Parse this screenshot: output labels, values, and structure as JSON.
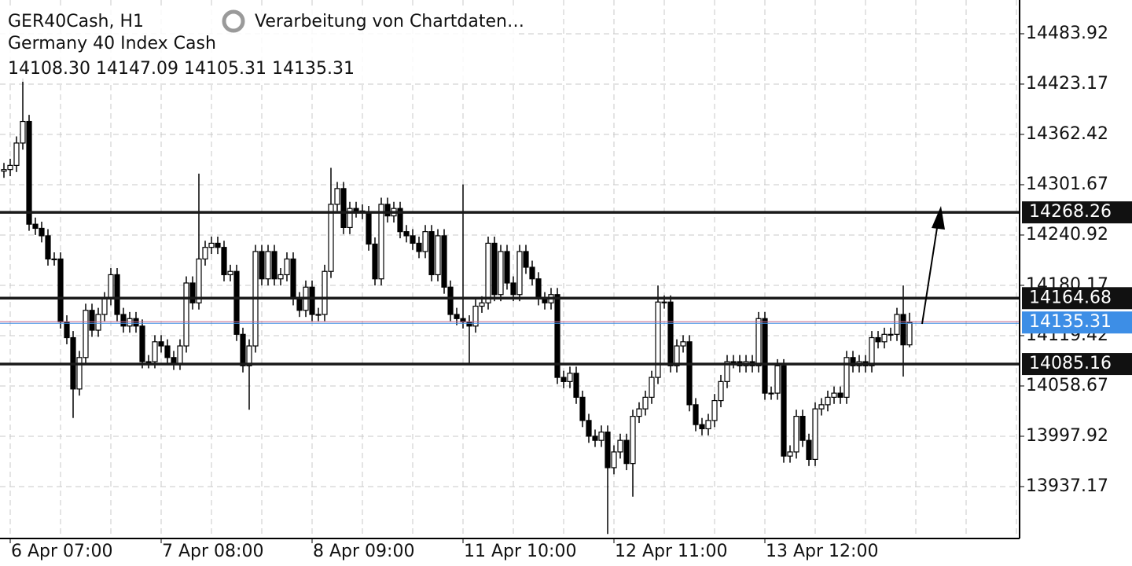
{
  "chart_data": {
    "type": "candlestick",
    "title": "GER40Cash, H1",
    "subtitle": "Germany 40 Index Cash",
    "status": "Verarbeitung von Chartdaten…",
    "categories": [
      null,
      "6 Apr 07:00",
      null,
      null,
      null,
      null,
      null,
      null,
      null,
      null,
      null,
      null,
      null,
      null,
      null,
      null,
      null,
      null,
      null,
      null,
      null,
      null,
      null,
      null,
      null,
      "7 Apr 08:00",
      null,
      null,
      null,
      null,
      null,
      null,
      null,
      null,
      null,
      null,
      null,
      null,
      null,
      null,
      null,
      null,
      null,
      null,
      null,
      null,
      null,
      null,
      null,
      "8 Apr 09:00",
      null,
      null,
      null,
      null,
      null,
      null,
      null,
      null,
      null,
      null,
      null,
      null,
      null,
      null,
      null,
      null,
      null,
      null,
      null,
      null,
      null,
      null,
      null,
      "11 Apr 10:00",
      null,
      null,
      null,
      null,
      null,
      null,
      null,
      null,
      null,
      null,
      null,
      null,
      null,
      null,
      null,
      null,
      null,
      null,
      null,
      null,
      null,
      null,
      null,
      "12 Apr 11:00",
      null,
      null,
      null,
      null,
      null,
      null,
      null,
      null,
      null,
      null,
      null,
      null,
      null,
      null,
      null,
      null,
      null,
      null,
      null,
      null,
      null,
      null,
      null,
      "13 Apr 12:00",
      null,
      null,
      null,
      null,
      null,
      null,
      null,
      null,
      null,
      null,
      null,
      null,
      null,
      null,
      null,
      null,
      null,
      null,
      null,
      null,
      null,
      null,
      null
    ],
    "open": [
      14318,
      14320,
      14325,
      14352,
      14378,
      14254,
      14249,
      14240,
      14212,
      14212,
      14136,
      14117,
      14055,
      14093,
      14150,
      14126,
      14145,
      14164,
      14193,
      14145,
      14131,
      14140,
      14131,
      14088,
      14088,
      14112,
      14107,
      14093,
      14086,
      14107,
      14183,
      14159,
      14212,
      14226,
      14231,
      14226,
      14193,
      14197,
      14121,
      14083,
      14107,
      14221,
      14188,
      14221,
      14188,
      14193,
      14212,
      14164,
      14150,
      14178,
      14145,
      14145,
      14197,
      14278,
      14297,
      14250,
      14273,
      14270,
      14268,
      14230,
      14188,
      14278,
      14264,
      14273,
      14245,
      14240,
      14231,
      14221,
      14245,
      14193,
      14240,
      14178,
      14145,
      14140,
      14136,
      14131,
      14155,
      14159,
      14231,
      14169,
      14221,
      14183,
      14169,
      14221,
      14202,
      14188,
      14164,
      14159,
      14169,
      14069,
      14064,
      14074,
      14045,
      14017,
      13998,
      13993,
      14003,
      13960,
      13979,
      13993,
      13965,
      14022,
      14031,
      14045,
      14069,
      14160,
      14160,
      14083,
      14107,
      14112,
      14036,
      14012,
      14007,
      14017,
      14041,
      14064,
      14088,
      14088,
      14083,
      14088,
      14083,
      14140,
      14050,
      14050,
      14083,
      13974,
      13979,
      14022,
      13993,
      13970,
      14031,
      14036,
      14045,
      14050,
      14045,
      14093,
      14083,
      14088,
      14083,
      14117,
      14112,
      14121,
      14121,
      14145,
      14108.3
    ],
    "high": [
      14328,
      14333,
      14360,
      14430,
      14386,
      14262,
      14257,
      14248,
      14220,
      14220,
      14144,
      14125,
      14101,
      14158,
      14158,
      14153,
      14172,
      14201,
      14201,
      14153,
      14148,
      14148,
      14139,
      14096,
      14120,
      14120,
      14115,
      14101,
      14115,
      14191,
      14191,
      14315,
      14234,
      14239,
      14239,
      14234,
      14205,
      14205,
      14129,
      14115,
      14229,
      14229,
      14229,
      14229,
      14201,
      14220,
      14220,
      14172,
      14186,
      14186,
      14153,
      14205,
      14322,
      14305,
      14305,
      14281,
      14281,
      14278,
      14276,
      14238,
      14286,
      14286,
      14281,
      14281,
      14253,
      14248,
      14239,
      14253,
      14253,
      14248,
      14248,
      14186,
      14153,
      14302,
      14144,
      14163,
      14167,
      14239,
      14239,
      14229,
      14229,
      14191,
      14229,
      14229,
      14210,
      14196,
      14172,
      14177,
      14177,
      14077,
      14082,
      14082,
      14053,
      14025,
      14006,
      14011,
      14011,
      13987,
      14001,
      14001,
      14030,
      14039,
      14053,
      14077,
      14180,
      14168,
      14168,
      14115,
      14120,
      14120,
      14044,
      14020,
      14025,
      14049,
      14072,
      14096,
      14096,
      14096,
      14096,
      14096,
      14148,
      14148,
      14058,
      14091,
      14091,
      13987,
      14030,
      14030,
      14001,
      14039,
      14044,
      14053,
      14058,
      14058,
      14101,
      14101,
      14096,
      14096,
      14125,
      14125,
      14129,
      14129,
      14153,
      14180,
      14147.09
    ],
    "low": [
      14310,
      14312,
      14317,
      14344,
      14246,
      14241,
      14232,
      14204,
      14204,
      14128,
      14109,
      14020,
      14047,
      14085,
      14118,
      14118,
      14137,
      14156,
      14137,
      14123,
      14123,
      14123,
      14080,
      14080,
      14080,
      14099,
      14085,
      14078,
      14078,
      14099,
      14151,
      14151,
      14204,
      14218,
      14218,
      14185,
      14185,
      14113,
      14075,
      14030,
      14099,
      14180,
      14180,
      14180,
      14180,
      14185,
      14156,
      14142,
      14142,
      14137,
      14137,
      14137,
      14189,
      14270,
      14242,
      14242,
      14262,
      14260,
      14222,
      14180,
      14180,
      14256,
      14256,
      14237,
      14232,
      14223,
      14213,
      14213,
      14185,
      14185,
      14170,
      14137,
      14132,
      14128,
      14085,
      14123,
      14147,
      14151,
      14161,
      14161,
      14175,
      14161,
      14161,
      14194,
      14180,
      14156,
      14151,
      14151,
      14061,
      14056,
      14056,
      14037,
      14009,
      13990,
      13985,
      13985,
      13880,
      13952,
      13971,
      13957,
      13925,
      14014,
      14023,
      14037,
      14061,
      14152,
      14075,
      14075,
      14099,
      14028,
      14004,
      13999,
      13999,
      14009,
      14033,
      14056,
      14080,
      14075,
      14075,
      14075,
      14075,
      14042,
      14042,
      14042,
      13966,
      13966,
      13971,
      13985,
      13962,
      13962,
      14023,
      14028,
      14037,
      14037,
      14037,
      14075,
      14075,
      14075,
      14075,
      14104,
      14104,
      14113,
      14113,
      14070,
      14105.31
    ],
    "close": [
      14320,
      14325,
      14352,
      14378,
      14254,
      14249,
      14240,
      14212,
      14212,
      14136,
      14117,
      14055,
      14093,
      14150,
      14126,
      14145,
      14164,
      14193,
      14145,
      14131,
      14140,
      14131,
      14088,
      14088,
      14112,
      14107,
      14093,
      14086,
      14107,
      14183,
      14159,
      14212,
      14226,
      14231,
      14226,
      14193,
      14197,
      14121,
      14083,
      14107,
      14221,
      14188,
      14221,
      14188,
      14193,
      14212,
      14164,
      14150,
      14178,
      14145,
      14145,
      14197,
      14278,
      14297,
      14250,
      14273,
      14270,
      14268,
      14230,
      14188,
      14278,
      14264,
      14273,
      14245,
      14240,
      14231,
      14221,
      14245,
      14193,
      14240,
      14178,
      14145,
      14140,
      14136,
      14131,
      14155,
      14159,
      14231,
      14169,
      14221,
      14183,
      14169,
      14221,
      14202,
      14188,
      14164,
      14159,
      14169,
      14069,
      14064,
      14074,
      14045,
      14017,
      13998,
      13993,
      14003,
      13960,
      13979,
      13993,
      13965,
      14022,
      14031,
      14045,
      14069,
      14160,
      14160,
      14083,
      14107,
      14112,
      14036,
      14012,
      14007,
      14017,
      14041,
      14064,
      14088,
      14088,
      14083,
      14088,
      14083,
      14140,
      14050,
      14050,
      14083,
      13974,
      13979,
      14022,
      13993,
      13970,
      14031,
      14036,
      14045,
      14050,
      14045,
      14093,
      14083,
      14088,
      14083,
      14117,
      14112,
      14121,
      14121,
      14145,
      14108.3,
      14135.31
    ],
    "levels": [
      14268.26,
      14164.68,
      14085.16
    ],
    "ylim": [
      13874.5,
      14524.7
    ],
    "yticks": [
      13937.17,
      13997.92,
      14058.67,
      14119.42,
      14180.17,
      14240.92,
      14301.67,
      14362.42,
      14423.17,
      14483.92
    ],
    "grid": true,
    "up_color": "#ffffff",
    "down_color": "#000000",
    "price_color": "#3d8ee6"
  }
}
